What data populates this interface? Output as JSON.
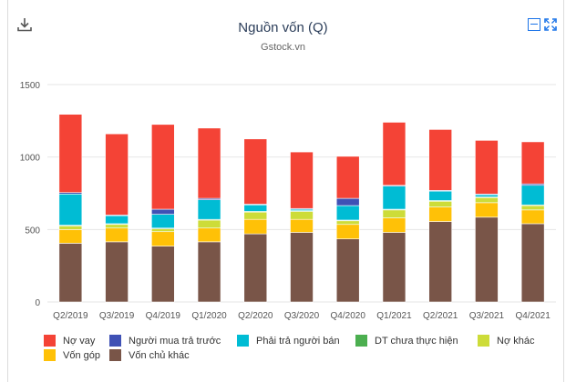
{
  "header": {
    "title": "Nguồn vốn (Q)",
    "subtitle": "Gstock.vn"
  },
  "toolbar": {
    "download_icon": "download-icon",
    "minimize_icon": "minimize-icon",
    "expand_icon": "expand-icon"
  },
  "chart_data": {
    "type": "bar",
    "stacked": true,
    "title": "Nguồn vốn (Q)",
    "subtitle": "Gstock.vn",
    "categories": [
      "Q2/2019",
      "Q3/2019",
      "Q4/2019",
      "Q1/2020",
      "Q2/2020",
      "Q3/2020",
      "Q4/2020",
      "Q1/2021",
      "Q2/2021",
      "Q3/2021",
      "Q4/2021"
    ],
    "ylim": [
      0,
      1500
    ],
    "yticks": [
      0,
      500,
      1000,
      1500
    ],
    "grid": true,
    "legend_position": "bottom",
    "series": [
      {
        "name": "Vốn chủ khác",
        "color": "#795548",
        "values": [
          405,
          415,
          385,
          415,
          470,
          480,
          435,
          480,
          555,
          585,
          540
        ]
      },
      {
        "name": "Vốn góp",
        "color": "#ffc107",
        "values": [
          95,
          95,
          100,
          95,
          100,
          90,
          100,
          100,
          100,
          100,
          95
        ]
      },
      {
        "name": "Nợ khác",
        "color": "#cddc39",
        "values": [
          25,
          25,
          20,
          55,
          50,
          55,
          25,
          55,
          40,
          35,
          30
        ]
      },
      {
        "name": "DT chưa thực hiện",
        "color": "#4caf50",
        "values": [
          5,
          5,
          5,
          5,
          5,
          5,
          5,
          5,
          5,
          5,
          5
        ]
      },
      {
        "name": "Phải trả người bán",
        "color": "#00bcd4",
        "values": [
          215,
          55,
          95,
          135,
          45,
          10,
          100,
          160,
          65,
          15,
          135
        ]
      },
      {
        "name": "Người mua trả trước",
        "color": "#3f51b5",
        "values": [
          10,
          5,
          35,
          10,
          5,
          5,
          50,
          5,
          5,
          5,
          10
        ]
      },
      {
        "name": "Nợ vay",
        "color": "#f44336",
        "values": [
          540,
          560,
          585,
          485,
          450,
          390,
          290,
          435,
          420,
          370,
          290
        ]
      }
    ]
  },
  "legend": {
    "row1": [
      "Nợ vay",
      "Người mua trả trước",
      "Phải trả người bán",
      "DT chưa thực hiện",
      "Nợ khác"
    ],
    "row2": [
      "Vốn góp",
      "Vốn chủ khác"
    ]
  }
}
